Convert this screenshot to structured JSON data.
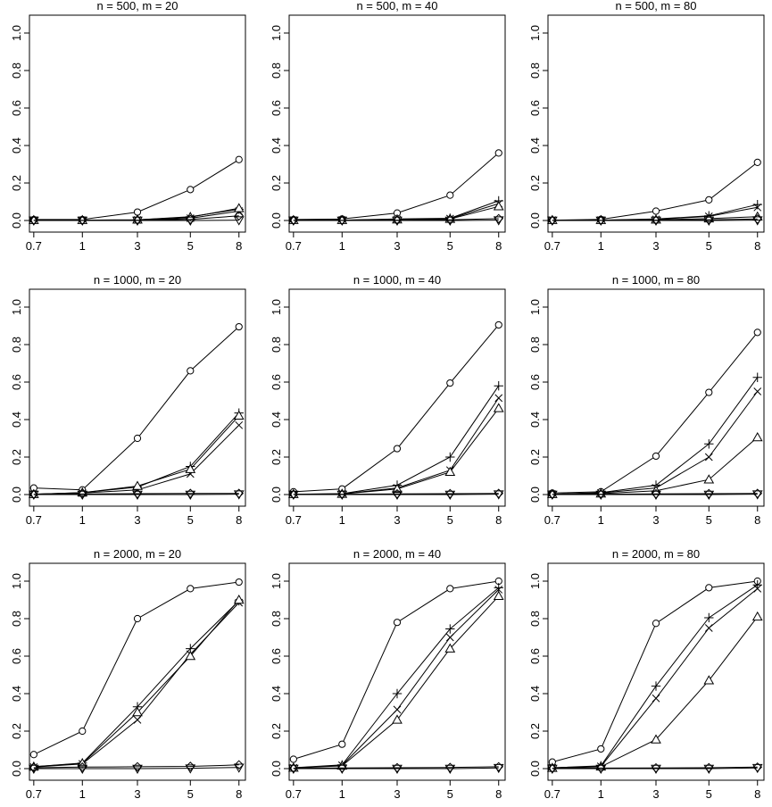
{
  "chart_data": [
    {
      "type": "line",
      "title": "n = 500, m = 20",
      "categories": [
        "0.7",
        "1",
        "3",
        "5",
        "8"
      ],
      "ylim": [
        0,
        1
      ],
      "yticks": [
        "0.0",
        "0.2",
        "0.4",
        "0.6",
        "0.8",
        "1.0"
      ],
      "series": [
        {
          "marker": "circle",
          "values": [
            0.005,
            0.005,
            0.045,
            0.165,
            0.325
          ]
        },
        {
          "marker": "plus",
          "values": [
            0.002,
            0.002,
            0.004,
            0.02,
            0.06
          ]
        },
        {
          "marker": "cross",
          "values": [
            0.002,
            0.002,
            0.003,
            0.012,
            0.05
          ]
        },
        {
          "marker": "triangle",
          "values": [
            0.002,
            0.002,
            0.004,
            0.018,
            0.065
          ]
        },
        {
          "marker": "diamond",
          "values": [
            0.001,
            0.001,
            0.002,
            0.006,
            0.025
          ]
        },
        {
          "marker": "triangle-down",
          "values": [
            0.0,
            0.0,
            0.0,
            0.0,
            0.002
          ]
        }
      ]
    },
    {
      "type": "line",
      "title": "n = 500, m = 40",
      "categories": [
        "0.7",
        "1",
        "3",
        "5",
        "8"
      ],
      "ylim": [
        0,
        1
      ],
      "yticks": [
        "0.0",
        "0.2",
        "0.4",
        "0.6",
        "0.8",
        "1.0"
      ],
      "series": [
        {
          "marker": "circle",
          "values": [
            0.005,
            0.008,
            0.04,
            0.135,
            0.36
          ]
        },
        {
          "marker": "plus",
          "values": [
            0.002,
            0.002,
            0.008,
            0.012,
            0.105
          ]
        },
        {
          "marker": "cross",
          "values": [
            0.002,
            0.002,
            0.006,
            0.01,
            0.09
          ]
        },
        {
          "marker": "triangle",
          "values": [
            0.002,
            0.002,
            0.005,
            0.008,
            0.075
          ]
        },
        {
          "marker": "diamond",
          "values": [
            0.001,
            0.001,
            0.002,
            0.004,
            0.01
          ]
        },
        {
          "marker": "triangle-down",
          "values": [
            0.0,
            0.0,
            0.0,
            0.0,
            0.002
          ]
        }
      ]
    },
    {
      "type": "line",
      "title": "n = 500, m = 80",
      "categories": [
        "0.7",
        "1",
        "3",
        "5",
        "8"
      ],
      "ylim": [
        0,
        1
      ],
      "yticks": [
        "0.0",
        "0.2",
        "0.4",
        "0.6",
        "0.8",
        "1.0"
      ],
      "series": [
        {
          "marker": "circle",
          "values": [
            0.002,
            0.006,
            0.05,
            0.11,
            0.31
          ]
        },
        {
          "marker": "plus",
          "values": [
            0.002,
            0.002,
            0.008,
            0.025,
            0.085
          ]
        },
        {
          "marker": "cross",
          "values": [
            0.002,
            0.002,
            0.006,
            0.022,
            0.07
          ]
        },
        {
          "marker": "triangle",
          "values": [
            0.002,
            0.002,
            0.004,
            0.01,
            0.02
          ]
        },
        {
          "marker": "diamond",
          "values": [
            0.001,
            0.001,
            0.002,
            0.004,
            0.008
          ]
        },
        {
          "marker": "triangle-down",
          "values": [
            0.0,
            0.0,
            0.0,
            0.0,
            0.002
          ]
        }
      ]
    },
    {
      "type": "line",
      "title": "n = 1000, m = 20",
      "categories": [
        "0.7",
        "1",
        "3",
        "5",
        "8"
      ],
      "ylim": [
        0,
        1
      ],
      "yticks": [
        "0.0",
        "0.2",
        "0.4",
        "0.6",
        "0.8",
        "1.0"
      ],
      "series": [
        {
          "marker": "circle",
          "values": [
            0.035,
            0.025,
            0.3,
            0.66,
            0.895
          ]
        },
        {
          "marker": "plus",
          "values": [
            0.002,
            0.01,
            0.04,
            0.15,
            0.435
          ]
        },
        {
          "marker": "cross",
          "values": [
            0.002,
            0.008,
            0.025,
            0.11,
            0.37
          ]
        },
        {
          "marker": "triangle",
          "values": [
            0.002,
            0.01,
            0.045,
            0.135,
            0.42
          ]
        },
        {
          "marker": "diamond",
          "values": [
            0.001,
            0.003,
            0.005,
            0.006,
            0.006
          ]
        },
        {
          "marker": "triangle-down",
          "values": [
            0.0,
            0.0,
            0.0,
            0.0,
            0.002
          ]
        }
      ]
    },
    {
      "type": "line",
      "title": "n = 1000, m = 40",
      "categories": [
        "0.7",
        "1",
        "3",
        "5",
        "8"
      ],
      "ylim": [
        0,
        1
      ],
      "yticks": [
        "0.0",
        "0.2",
        "0.4",
        "0.6",
        "0.8",
        "1.0"
      ],
      "series": [
        {
          "marker": "circle",
          "values": [
            0.015,
            0.03,
            0.245,
            0.595,
            0.905
          ]
        },
        {
          "marker": "plus",
          "values": [
            0.002,
            0.005,
            0.05,
            0.2,
            0.58
          ]
        },
        {
          "marker": "cross",
          "values": [
            0.002,
            0.004,
            0.035,
            0.13,
            0.515
          ]
        },
        {
          "marker": "triangle",
          "values": [
            0.002,
            0.003,
            0.03,
            0.12,
            0.46
          ]
        },
        {
          "marker": "diamond",
          "values": [
            0.001,
            0.002,
            0.004,
            0.005,
            0.006
          ]
        },
        {
          "marker": "triangle-down",
          "values": [
            0.0,
            0.0,
            0.0,
            0.0,
            0.002
          ]
        }
      ]
    },
    {
      "type": "line",
      "title": "n = 1000, m = 80",
      "categories": [
        "0.7",
        "1",
        "3",
        "5",
        "8"
      ],
      "ylim": [
        0,
        1
      ],
      "yticks": [
        "0.0",
        "0.2",
        "0.4",
        "0.6",
        "0.8",
        "1.0"
      ],
      "series": [
        {
          "marker": "circle",
          "values": [
            0.008,
            0.015,
            0.205,
            0.545,
            0.865
          ]
        },
        {
          "marker": "plus",
          "values": [
            0.002,
            0.01,
            0.05,
            0.27,
            0.625
          ]
        },
        {
          "marker": "cross",
          "values": [
            0.002,
            0.008,
            0.035,
            0.2,
            0.55
          ]
        },
        {
          "marker": "triangle",
          "values": [
            0.002,
            0.005,
            0.02,
            0.08,
            0.305
          ]
        },
        {
          "marker": "diamond",
          "values": [
            0.001,
            0.002,
            0.004,
            0.005,
            0.006
          ]
        },
        {
          "marker": "triangle-down",
          "values": [
            0.0,
            0.0,
            0.0,
            0.0,
            0.002
          ]
        }
      ]
    },
    {
      "type": "line",
      "title": "n = 2000, m = 20",
      "categories": [
        "0.7",
        "1",
        "3",
        "5",
        "8"
      ],
      "ylim": [
        0,
        1
      ],
      "yticks": [
        "0.0",
        "0.2",
        "0.4",
        "0.6",
        "0.8",
        "1.0"
      ],
      "series": [
        {
          "marker": "circle",
          "values": [
            0.075,
            0.2,
            0.8,
            0.96,
            0.995
          ]
        },
        {
          "marker": "plus",
          "values": [
            0.01,
            0.03,
            0.33,
            0.64,
            0.895
          ]
        },
        {
          "marker": "cross",
          "values": [
            0.008,
            0.025,
            0.26,
            0.61,
            0.885
          ]
        },
        {
          "marker": "triangle",
          "values": [
            0.01,
            0.028,
            0.3,
            0.6,
            0.9
          ]
        },
        {
          "marker": "diamond",
          "values": [
            0.005,
            0.008,
            0.01,
            0.012,
            0.02
          ]
        },
        {
          "marker": "triangle-down",
          "values": [
            0.0,
            0.0,
            0.0,
            0.002,
            0.006
          ]
        }
      ]
    },
    {
      "type": "line",
      "title": "n = 2000, m = 40",
      "categories": [
        "0.7",
        "1",
        "3",
        "5",
        "8"
      ],
      "ylim": [
        0,
        1
      ],
      "yticks": [
        "0.0",
        "0.2",
        "0.4",
        "0.6",
        "0.8",
        "1.0"
      ],
      "series": [
        {
          "marker": "circle",
          "values": [
            0.05,
            0.13,
            0.78,
            0.96,
            1.0
          ]
        },
        {
          "marker": "plus",
          "values": [
            0.005,
            0.02,
            0.4,
            0.745,
            0.965
          ]
        },
        {
          "marker": "cross",
          "values": [
            0.004,
            0.018,
            0.315,
            0.7,
            0.955
          ]
        },
        {
          "marker": "triangle",
          "values": [
            0.004,
            0.015,
            0.26,
            0.64,
            0.92
          ]
        },
        {
          "marker": "diamond",
          "values": [
            0.002,
            0.004,
            0.005,
            0.006,
            0.01
          ]
        },
        {
          "marker": "triangle-down",
          "values": [
            0.0,
            0.0,
            0.0,
            0.0,
            0.004
          ]
        }
      ]
    },
    {
      "type": "line",
      "title": "n = 2000, m = 80",
      "categories": [
        "0.7",
        "1",
        "3",
        "5",
        "8"
      ],
      "ylim": [
        0,
        1
      ],
      "yticks": [
        "0.0",
        "0.2",
        "0.4",
        "0.6",
        "0.8",
        "1.0"
      ],
      "series": [
        {
          "marker": "circle",
          "values": [
            0.035,
            0.105,
            0.775,
            0.965,
            1.0
          ]
        },
        {
          "marker": "plus",
          "values": [
            0.005,
            0.015,
            0.44,
            0.805,
            0.98
          ]
        },
        {
          "marker": "cross",
          "values": [
            0.004,
            0.012,
            0.375,
            0.75,
            0.96
          ]
        },
        {
          "marker": "triangle",
          "values": [
            0.003,
            0.01,
            0.155,
            0.47,
            0.81
          ]
        },
        {
          "marker": "diamond",
          "values": [
            0.002,
            0.003,
            0.004,
            0.005,
            0.008
          ]
        },
        {
          "marker": "triangle-down",
          "values": [
            0.0,
            0.0,
            0.0,
            0.0,
            0.004
          ]
        }
      ]
    }
  ]
}
